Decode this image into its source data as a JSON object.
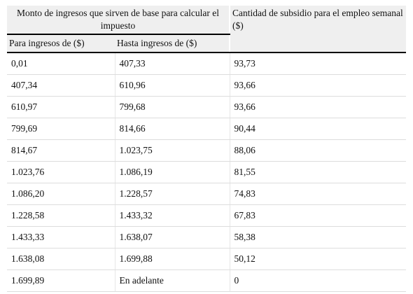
{
  "header": {
    "group": "Monto de ingresos que sirven de base para calcular el impuesto",
    "subsidy": "Cantidad de subsidio para el empleo semanal ($)",
    "columns": [
      "Para ingresos de ($)",
      "Hasta ingresos de ($)"
    ]
  },
  "table": {
    "rows": [
      [
        "0,01",
        "407,33",
        "93,73"
      ],
      [
        "407,34",
        "610,96",
        "93,66"
      ],
      [
        "610,97",
        "799,68",
        "93,66"
      ],
      [
        "799,69",
        "814,66",
        "90,44"
      ],
      [
        "814,67",
        "1.023,75",
        "88,06"
      ],
      [
        "1.023,76",
        "1.086,19",
        "81,55"
      ],
      [
        "1.086,20",
        "1.228,57",
        "74,83"
      ],
      [
        "1.228,58",
        "1.433,32",
        "67,83"
      ],
      [
        "1.433,33",
        "1.638,07",
        "58,38"
      ],
      [
        "1.638,08",
        "1.699,88",
        "50,12"
      ],
      [
        "1.699,89",
        "En adelante",
        "0"
      ]
    ]
  }
}
